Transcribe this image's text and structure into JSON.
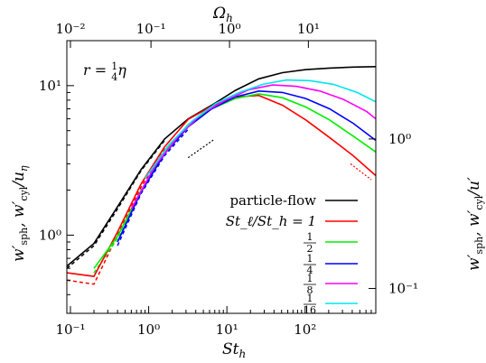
{
  "chart_data": {
    "type": "line",
    "annotation": "r = ¼η",
    "xlabel": "St_h",
    "top_xlabel": "Ω_h",
    "ylabel_left": "w′_sph, w′_cyl / u_η",
    "ylabel_right": "w′_sph, w′_cyl / u′",
    "x_scale": "log",
    "y_scale": "log",
    "xlim": [
      0.09,
      800
    ],
    "ylim": [
      0.3,
      20
    ],
    "x_ticks": [
      {
        "value": 0.1,
        "label": "10⁻¹"
      },
      {
        "value": 1,
        "label": "10⁰"
      },
      {
        "value": 10,
        "label": "10¹"
      },
      {
        "value": 100,
        "label": "10²"
      }
    ],
    "top_ticks": [
      {
        "value": 0.1,
        "label": "10⁻²"
      },
      {
        "value": 1.07,
        "label": "10⁻¹"
      },
      {
        "value": 10.8,
        "label": "10⁰"
      },
      {
        "value": 110,
        "label": "10¹"
      }
    ],
    "y_ticks_left": [
      {
        "value": 1,
        "label": "10⁰"
      },
      {
        "value": 10,
        "label": "10¹"
      }
    ],
    "y_ticks_right": [
      {
        "value": 0.44,
        "label": "10⁻¹"
      },
      {
        "value": 4.4,
        "label": "10⁰"
      }
    ],
    "legend_position": "lower-right",
    "series": [
      {
        "name": "particle-flow",
        "color": "#000000",
        "x": [
          0.09,
          0.2,
          0.4,
          0.8,
          1.6,
          3.2,
          6.4,
          12.8,
          25.6,
          51.2,
          102,
          205,
          410,
          800
        ],
        "y": [
          0.62,
          0.88,
          1.55,
          2.75,
          4.4,
          6.0,
          7.4,
          9.3,
          11.1,
          12.2,
          12.8,
          13.1,
          13.3,
          13.4
        ]
      },
      {
        "name": "St_ℓ/St_h = 1",
        "color": "#ff0000",
        "x": [
          0.09,
          0.2,
          0.4,
          0.8,
          1.6,
          3.2,
          6.4,
          12.8,
          25.6,
          51.2,
          102,
          205,
          410,
          800
        ],
        "y": [
          0.56,
          0.53,
          1.05,
          2.2,
          3.9,
          5.95,
          7.3,
          8.4,
          8.6,
          7.4,
          5.9,
          4.5,
          3.4,
          2.5
        ]
      },
      {
        "name": "1/2",
        "color": "#00ee00",
        "x": [
          0.2,
          0.4,
          0.8,
          1.6,
          3.2,
          6.4,
          12.8,
          25.6,
          51.2,
          102,
          205,
          410,
          800
        ],
        "y": [
          0.6,
          0.98,
          2.0,
          3.6,
          5.5,
          7.0,
          8.2,
          8.8,
          8.3,
          7.2,
          5.9,
          4.6,
          3.6
        ]
      },
      {
        "name": "1/4",
        "color": "#0000ff",
        "x": [
          0.4,
          0.8,
          1.6,
          3.2,
          6.4,
          12.8,
          25.6,
          51.2,
          102,
          205,
          410,
          800
        ],
        "y": [
          0.9,
          1.95,
          3.5,
          5.3,
          7.0,
          8.4,
          9.2,
          9.0,
          8.2,
          7.0,
          5.6,
          4.3
        ]
      },
      {
        "name": "1/8",
        "color": "#ff00ff",
        "x": [
          0.6,
          1.2,
          2.4,
          4.8,
          9.6,
          19.2,
          38.4,
          76.8,
          154,
          307,
          614,
          800
        ],
        "y": [
          1.5,
          2.9,
          4.6,
          6.5,
          8.0,
          9.4,
          10.1,
          9.9,
          9.2,
          8.1,
          6.7,
          6.0
        ]
      },
      {
        "name": "1/16",
        "color": "#00e5ee",
        "x": [
          0.9,
          1.8,
          3.6,
          7.2,
          14.4,
          28.8,
          57.6,
          115,
          230,
          461,
          800
        ],
        "y": [
          2.4,
          4.0,
          5.8,
          7.6,
          9.0,
          10.2,
          10.9,
          10.8,
          10.2,
          9.0,
          7.8
        ]
      }
    ],
    "dashed_series": [
      {
        "color": "#000000",
        "x": [
          0.09,
          0.2,
          0.4,
          0.8,
          1.6
        ],
        "y": [
          0.6,
          0.85,
          1.5,
          2.7,
          4.3
        ]
      },
      {
        "color": "#ff0000",
        "x": [
          0.09,
          0.2,
          0.4,
          0.8,
          1.6
        ],
        "y": [
          0.5,
          0.47,
          1.0,
          2.1,
          3.8
        ]
      },
      {
        "color": "#00ee00",
        "x": [
          0.2,
          0.4,
          0.8,
          1.6
        ],
        "y": [
          0.56,
          0.95,
          1.95,
          3.5
        ]
      },
      {
        "color": "#0000ff",
        "x": [
          0.4,
          0.8,
          1.6,
          3.2
        ],
        "y": [
          0.85,
          1.9,
          3.4,
          5.1
        ]
      }
    ],
    "reference_slopes": [
      {
        "color": "#000000",
        "x": [
          3.2,
          7.0
        ],
        "y": [
          3.3,
          4.4
        ]
      },
      {
        "color": "#ff0000",
        "x": [
          380,
          700
        ],
        "y": [
          3.0,
          2.35
        ]
      }
    ]
  }
}
